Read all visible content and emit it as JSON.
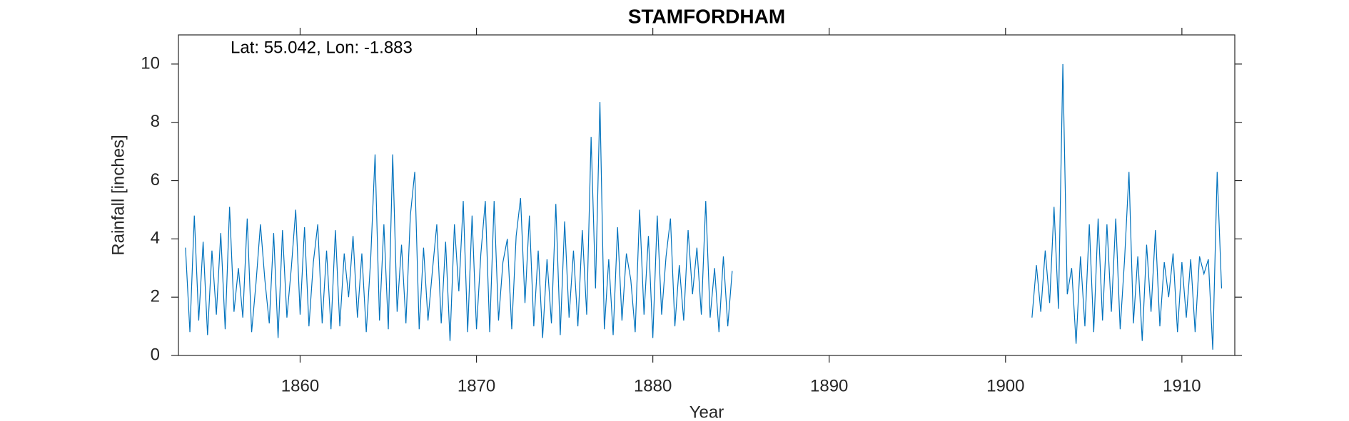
{
  "chart_data": {
    "type": "line",
    "title": "STAMFORDHAM",
    "annotation": "Lat: 55.042, Lon: -1.883",
    "xlabel": "Year",
    "ylabel": "Rainfall [inches]",
    "color": "#0072bd",
    "xlim": [
      1853.1,
      1913
    ],
    "xticks": [
      1860,
      1870,
      1880,
      1890,
      1900,
      1910
    ],
    "ylim": [
      0,
      11
    ],
    "yticks": [
      0,
      2,
      4,
      6,
      8,
      10
    ],
    "grid": false,
    "x": [
      1853.5,
      1853.75,
      1854,
      1854.25,
      1854.5,
      1854.75,
      1855,
      1855.25,
      1855.5,
      1855.75,
      1856,
      1856.25,
      1856.5,
      1856.75,
      1857,
      1857.25,
      1857.5,
      1857.75,
      1858,
      1858.25,
      1858.5,
      1858.75,
      1859,
      1859.25,
      1859.5,
      1859.75,
      1860,
      1860.25,
      1860.5,
      1860.75,
      1861,
      1861.25,
      1861.5,
      1861.75,
      1862,
      1862.25,
      1862.5,
      1862.75,
      1863,
      1863.25,
      1863.5,
      1863.75,
      1864,
      1864.25,
      1864.5,
      1864.75,
      1865,
      1865.25,
      1865.5,
      1865.75,
      1866,
      1866.25,
      1866.5,
      1866.75,
      1867,
      1867.25,
      1867.5,
      1867.75,
      1868,
      1868.25,
      1868.5,
      1868.75,
      1869,
      1869.25,
      1869.5,
      1869.75,
      1870,
      1870.25,
      1870.5,
      1870.75,
      1871,
      1871.25,
      1871.5,
      1871.75,
      1872,
      1872.25,
      1872.5,
      1872.75,
      1873,
      1873.25,
      1873.5,
      1873.75,
      1874,
      1874.25,
      1874.5,
      1874.75,
      1875,
      1875.25,
      1875.5,
      1875.75,
      1876,
      1876.25,
      1876.5,
      1876.75,
      1877,
      1877.25,
      1877.5,
      1877.75,
      1878,
      1878.25,
      1878.5,
      1878.75,
      1879,
      1879.25,
      1879.5,
      1879.75,
      1880,
      1880.25,
      1880.5,
      1880.75,
      1881,
      1881.25,
      1881.5,
      1881.75,
      1882,
      1882.25,
      1882.5,
      1882.75,
      1883,
      1883.25,
      1883.5,
      1883.75,
      1884,
      1884.25,
      1884.5,
      1893,
      1901.5,
      1901.75,
      1902,
      1902.25,
      1902.5,
      1902.75,
      1903,
      1903.25,
      1903.5,
      1903.75,
      1904,
      1904.25,
      1904.5,
      1904.75,
      1905,
      1905.25,
      1905.5,
      1905.75,
      1906,
      1906.25,
      1906.5,
      1906.75,
      1907,
      1907.25,
      1907.5,
      1907.75,
      1908,
      1908.25,
      1908.5,
      1908.75,
      1909,
      1909.25,
      1909.5,
      1909.75,
      1910,
      1910.25,
      1910.5,
      1910.75,
      1911,
      1911.25,
      1911.5,
      1911.75,
      1912,
      1912.25
    ],
    "values": [
      3.7,
      0.8,
      4.8,
      1.2,
      3.9,
      0.7,
      3.6,
      1.4,
      4.2,
      0.9,
      5.1,
      1.5,
      3.0,
      1.3,
      4.7,
      0.8,
      2.5,
      4.5,
      2.6,
      1.1,
      4.2,
      0.6,
      4.3,
      1.3,
      3.0,
      5.0,
      1.4,
      4.4,
      1.0,
      3.2,
      4.5,
      1.1,
      3.6,
      0.9,
      4.3,
      1.0,
      3.5,
      2.0,
      4.1,
      1.3,
      3.5,
      0.8,
      3.3,
      6.9,
      1.2,
      4.5,
      0.9,
      6.9,
      1.5,
      3.8,
      1.1,
      4.8,
      6.3,
      0.9,
      3.7,
      1.2,
      2.9,
      4.5,
      1.1,
      3.9,
      0.5,
      4.5,
      2.2,
      5.3,
      0.8,
      4.8,
      0.9,
      3.5,
      5.3,
      0.8,
      5.3,
      1.2,
      3.2,
      4.0,
      0.9,
      4.1,
      5.4,
      1.8,
      4.8,
      1.0,
      3.6,
      0.6,
      3.3,
      1.1,
      5.2,
      0.7,
      4.6,
      1.3,
      3.6,
      1.0,
      4.3,
      1.4,
      7.5,
      2.3,
      8.7,
      0.9,
      3.3,
      0.7,
      4.4,
      1.2,
      3.5,
      2.6,
      0.8,
      5.0,
      1.4,
      4.1,
      0.6,
      4.8,
      1.4,
      3.4,
      4.7,
      1.0,
      3.1,
      1.2,
      4.3,
      2.1,
      3.7,
      1.4,
      5.3,
      1.3,
      3.0,
      0.8,
      3.4,
      1.0,
      2.9,
      null,
      1.3,
      3.1,
      1.5,
      3.6,
      1.8,
      5.1,
      1.6,
      10.0,
      2.1,
      3.0,
      0.4,
      3.4,
      1.0,
      4.5,
      0.8,
      4.7,
      1.2,
      4.5,
      1.5,
      4.7,
      0.9,
      3.3,
      6.3,
      1.1,
      3.4,
      0.5,
      3.8,
      1.5,
      4.3,
      1.0,
      3.2,
      2.0,
      3.5,
      0.8,
      3.2,
      1.3,
      3.3,
      0.8,
      3.4,
      2.8,
      3.3,
      0.2,
      6.3,
      2.3
    ]
  }
}
